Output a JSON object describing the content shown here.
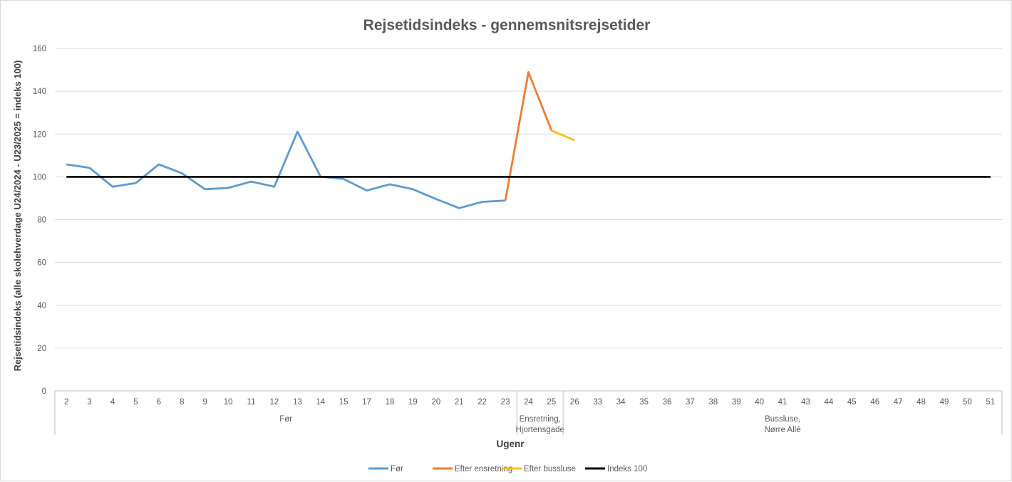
{
  "chart_data": {
    "type": "line",
    "title": "Rejsetidsindeks - gennemsnitsrejsetider",
    "ylabel": "Rejsetidsindeks (alle skolehverdage U24/2024 - U23/2025 = indeks 100)",
    "xlabel": "Ugenr",
    "ylim": [
      0,
      160
    ],
    "yticks": [
      0,
      20,
      40,
      60,
      80,
      100,
      120,
      140,
      160
    ],
    "grid": true,
    "legend_position": "bottom",
    "categories": [
      "2",
      "3",
      "4",
      "5",
      "6",
      "8",
      "9",
      "10",
      "11",
      "12",
      "13",
      "14",
      "15",
      "17",
      "18",
      "19",
      "20",
      "21",
      "22",
      "23",
      "24",
      "25",
      "26",
      "33",
      "34",
      "35",
      "36",
      "37",
      "38",
      "39",
      "40",
      "41",
      "43",
      "44",
      "45",
      "46",
      "47",
      "48",
      "49",
      "50",
      "51"
    ],
    "groups": [
      {
        "lines": [
          "Før"
        ],
        "start": 0,
        "end": 19
      },
      {
        "lines": [
          "Ensretning,",
          "Hjortensgade"
        ],
        "start": 20,
        "end": 21
      },
      {
        "lines": [
          "Bussluse,",
          "Nørre Allé"
        ],
        "start": 22,
        "end": 40
      }
    ],
    "series": [
      {
        "name": "Før",
        "color": "#5b9bd5",
        "values": [
          105.8,
          104.2,
          95.4,
          97.1,
          105.8,
          101.7,
          94.2,
          94.8,
          97.8,
          95.4,
          121.1,
          100.1,
          99.0,
          93.6,
          96.5,
          94.2,
          89.6,
          85.4,
          88.3,
          88.9,
          null,
          null,
          null,
          null,
          null,
          null,
          null,
          null,
          null,
          null,
          null,
          null,
          null,
          null,
          null,
          null,
          null,
          null,
          null,
          null,
          null
        ]
      },
      {
        "name": "Efter ensretning",
        "color": "#ed7d31",
        "values": [
          null,
          null,
          null,
          null,
          null,
          null,
          null,
          null,
          null,
          null,
          null,
          null,
          null,
          null,
          null,
          null,
          null,
          null,
          null,
          88.9,
          148.9,
          121.6,
          null,
          null,
          null,
          null,
          null,
          null,
          null,
          null,
          null,
          null,
          null,
          null,
          null,
          null,
          null,
          null,
          null,
          null,
          null
        ]
      },
      {
        "name": "Efter bussluse",
        "color": "#ffc000",
        "values": [
          null,
          null,
          null,
          null,
          null,
          null,
          null,
          null,
          null,
          null,
          null,
          null,
          null,
          null,
          null,
          null,
          null,
          null,
          null,
          null,
          null,
          121.6,
          117.1,
          null,
          null,
          null,
          null,
          null,
          null,
          null,
          null,
          null,
          null,
          null,
          null,
          null,
          null,
          null,
          null,
          null,
          null
        ]
      },
      {
        "name": "Indeks 100",
        "color": "#000000",
        "values": [
          100,
          100,
          100,
          100,
          100,
          100,
          100,
          100,
          100,
          100,
          100,
          100,
          100,
          100,
          100,
          100,
          100,
          100,
          100,
          100,
          100,
          100,
          100,
          100,
          100,
          100,
          100,
          100,
          100,
          100,
          100,
          100,
          100,
          100,
          100,
          100,
          100,
          100,
          100,
          100,
          100
        ]
      }
    ]
  }
}
